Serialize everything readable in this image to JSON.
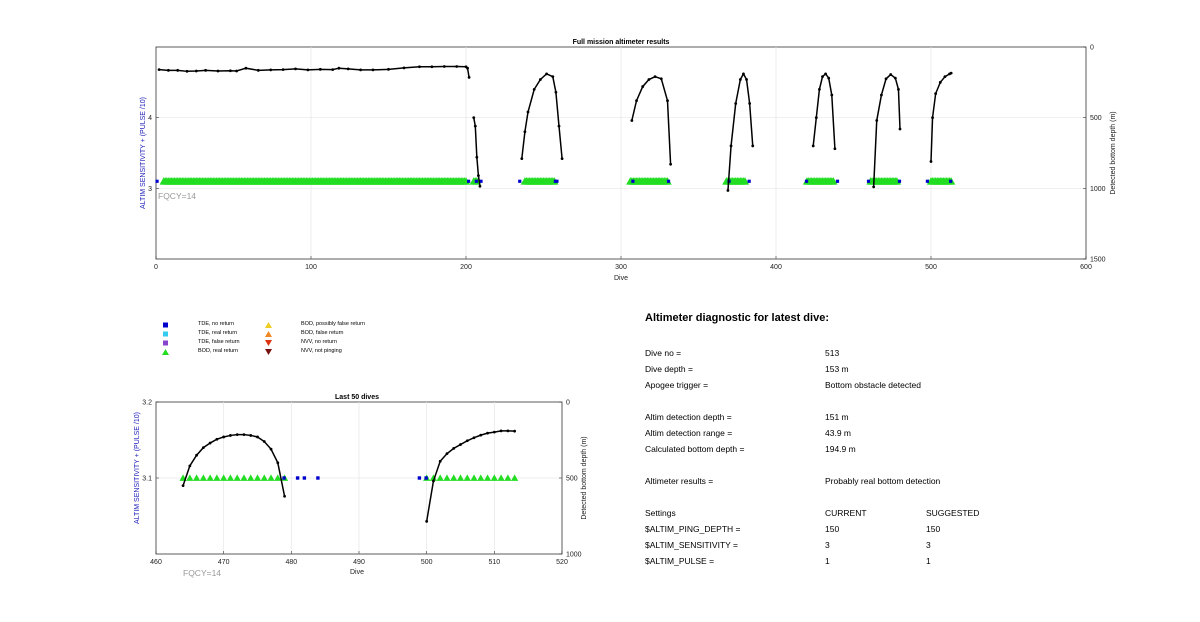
{
  "chart_data": [
    {
      "type": "scatter",
      "title": "Full mission altimeter results",
      "xlabel": "Dive",
      "ylabel_left": "ALTIM SENSITIVITY + (PULSE /10)",
      "ylabel_right": "Detected bottom depth (m)",
      "xlim": [
        0,
        600
      ],
      "x_ticks": [
        0,
        100,
        200,
        300,
        400,
        500,
        600
      ],
      "y_left_ticks": [
        3,
        4
      ],
      "y_right_ticks": [
        0,
        500,
        1000,
        1500
      ],
      "y_right_reversed": true,
      "y_right_lim": [
        0,
        1500
      ],
      "grid": true,
      "annotation": "FQCY=14",
      "settings_value": 3.1,
      "tde_no_return_x": [
        1,
        202,
        207,
        210,
        235,
        258,
        259,
        308,
        331,
        370,
        383,
        420,
        440,
        460,
        480,
        498,
        513
      ],
      "bod_real_segments": [
        [
          5,
          200
        ],
        [
          205,
          207
        ],
        [
          238,
          257
        ],
        [
          306,
          330
        ],
        [
          368,
          380
        ],
        [
          420,
          437
        ],
        [
          461,
          478
        ],
        [
          500,
          513
        ]
      ],
      "depth_series": [
        {
          "x": [
            2,
            8,
            14,
            20,
            26,
            32,
            40,
            48,
            52,
            58,
            66,
            74,
            82,
            90,
            98,
            106,
            114,
            118,
            124,
            132,
            140,
            150,
            160,
            170,
            178,
            186,
            194,
            200,
            201,
            202
          ],
          "y": [
            160,
            165,
            165,
            172,
            170,
            165,
            170,
            168,
            170,
            150,
            165,
            162,
            160,
            155,
            162,
            158,
            160,
            150,
            155,
            162,
            162,
            158,
            148,
            140,
            140,
            138,
            138,
            140,
            150,
            215
          ]
        },
        {
          "x": [
            205,
            206,
            207,
            208,
            209
          ],
          "y": [
            500,
            560,
            780,
            910,
            985
          ]
        },
        {
          "x": [
            236,
            238,
            240,
            244,
            248,
            252,
            256,
            258,
            260,
            262
          ],
          "y": [
            790,
            600,
            460,
            300,
            230,
            190,
            210,
            320,
            560,
            790
          ]
        },
        {
          "x": [
            307,
            310,
            314,
            318,
            322,
            326,
            330,
            332
          ],
          "y": [
            520,
            380,
            280,
            230,
            210,
            225,
            380,
            830
          ]
        },
        {
          "x": [
            369,
            371,
            374,
            377,
            379,
            381,
            383,
            385
          ],
          "y": [
            1015,
            700,
            400,
            230,
            190,
            230,
            400,
            700
          ]
        },
        {
          "x": [
            424,
            426,
            428,
            430,
            432,
            434,
            436,
            438
          ],
          "y": [
            700,
            500,
            300,
            210,
            190,
            220,
            340,
            720
          ]
        },
        {
          "x": [
            463,
            465,
            468,
            471,
            474,
            477,
            479,
            480
          ],
          "y": [
            990,
            520,
            340,
            225,
            195,
            220,
            300,
            580
          ]
        },
        {
          "x": [
            500,
            501,
            503,
            506,
            509,
            512,
            513
          ],
          "y": [
            810,
            500,
            330,
            250,
            210,
            190,
            185
          ]
        }
      ]
    },
    {
      "type": "scatter",
      "title": "Last 50 dives",
      "xlabel": "Dive",
      "ylabel_left": "ALTIM SENSITIVITY + (PULSE /10)",
      "ylabel_right": "Detected bottom depth (m)",
      "xlim": [
        460,
        520
      ],
      "x_ticks": [
        460,
        470,
        480,
        490,
        500,
        510,
        520
      ],
      "y_left_ticks": [
        3.1,
        3.2
      ],
      "y_right_ticks": [
        0,
        500,
        1000
      ],
      "y_right_reversed": true,
      "y_right_lim": [
        0,
        1000
      ],
      "grid": true,
      "annotation": "FQCY=14",
      "settings_value": 3.1,
      "tde_no_return_x": [
        479,
        481,
        482,
        484,
        499,
        500
      ],
      "bod_real_x": [
        464,
        465,
        466,
        467,
        468,
        469,
        470,
        471,
        472,
        473,
        474,
        475,
        476,
        477,
        478,
        479,
        500,
        501,
        502,
        503,
        504,
        505,
        506,
        507,
        508,
        509,
        510,
        511,
        512,
        513
      ],
      "depth_series": [
        {
          "x": [
            464,
            465,
            466,
            467,
            468,
            469,
            470,
            471,
            472,
            473,
            474,
            475,
            476,
            477,
            478,
            479
          ],
          "y": [
            550,
            420,
            350,
            300,
            270,
            245,
            230,
            220,
            215,
            215,
            220,
            230,
            260,
            310,
            400,
            620
          ]
        },
        {
          "x": [
            500,
            501,
            502,
            503,
            504,
            505,
            506,
            507,
            508,
            509,
            510,
            511,
            512,
            513
          ],
          "y": [
            785,
            520,
            390,
            340,
            305,
            280,
            255,
            235,
            218,
            205,
            198,
            190,
            190,
            192
          ]
        }
      ]
    }
  ],
  "legend": {
    "items": [
      {
        "label": "TDE, no return",
        "symbol": "square",
        "color": "#0000cc"
      },
      {
        "label": "TDE, real return",
        "symbol": "square",
        "color": "#33ccee"
      },
      {
        "label": "TDE, false return",
        "symbol": "square",
        "color": "#8844cc"
      },
      {
        "label": "BOD, real return",
        "symbol": "triangle-up",
        "color": "#22dd22"
      },
      {
        "label": "BOD, possibly false return",
        "symbol": "triangle-up",
        "color": "#eecc22"
      },
      {
        "label": "BOD, false return",
        "symbol": "triangle-up",
        "color": "#ee8822"
      },
      {
        "label": "NVV, no return",
        "symbol": "triangle-down",
        "color": "#dd3311"
      },
      {
        "label": "NVV, not pinging",
        "symbol": "triangle-down",
        "color": "#771111"
      }
    ]
  },
  "diagnostic": {
    "title": "Altimeter diagnostic for latest dive:",
    "rows": [
      {
        "label": "Dive no =",
        "value": "513"
      },
      {
        "label": "Dive depth =",
        "value": "153 m"
      },
      {
        "label": "Apogee trigger =",
        "value": "Bottom obstacle detected"
      },
      {
        "label": "Altim detection depth =",
        "value": "151 m"
      },
      {
        "label": "Altim detection range =",
        "value": "43.9 m"
      },
      {
        "label": "Calculated bottom depth =",
        "value": "194.9 m"
      },
      {
        "label": "Altimeter results =",
        "value": "Probably real bottom detection"
      }
    ],
    "settings_header": {
      "label": "Settings",
      "current": "CURRENT",
      "suggested": "SUGGESTED"
    },
    "settings": [
      {
        "label": "$ALTIM_PING_DEPTH =",
        "current": "150",
        "suggested": "150"
      },
      {
        "label": "$ALTIM_SENSITIVITY =",
        "current": "3",
        "suggested": "3"
      },
      {
        "label": "$ALTIM_PULSE =",
        "current": "1",
        "suggested": "1"
      }
    ]
  },
  "colors": {
    "tde_no_return": "#0000cc",
    "bod_real": "#22dd22",
    "depth_line": "#000000",
    "left_axis_label": "#2222bb",
    "grid": "#e6e6e6"
  }
}
